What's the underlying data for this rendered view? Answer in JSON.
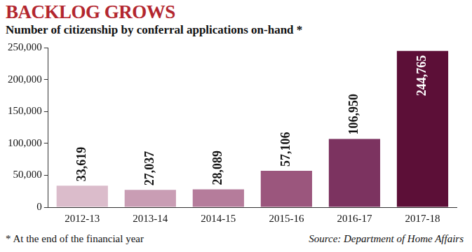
{
  "chart_data": {
    "type": "bar",
    "title": "BACKLOG GROWS",
    "subtitle": "Number of citizenship by conferral applications on-hand *",
    "categories": [
      "2012-13",
      "2013-14",
      "2014-15",
      "2015-16",
      "2016-17",
      "2017-18"
    ],
    "values": [
      33619,
      27037,
      28089,
      57106,
      106950,
      244765
    ],
    "value_labels": [
      "33,619",
      "27,037",
      "28,089",
      "57,106",
      "106,950",
      "244,765"
    ],
    "colors": [
      "#dbbccb",
      "#c99db4",
      "#b57c9b",
      "#9b567d",
      "#7c3360",
      "#5c0f37"
    ],
    "ylim": [
      0,
      250000
    ],
    "yticks": [
      0,
      {
        "value": 50000,
        "label": "50,000"
      },
      {
        "value": 100000,
        "label": "100,000"
      },
      {
        "value": 150000,
        "label": "150,000"
      },
      {
        "value": 200000,
        "label": "200,000"
      },
      {
        "value": 250000,
        "label": "250,000"
      }
    ],
    "grid": false,
    "data_labels": true,
    "footnote": "* At the end of the financial year",
    "source": "Source: Department of Home Affairs"
  }
}
